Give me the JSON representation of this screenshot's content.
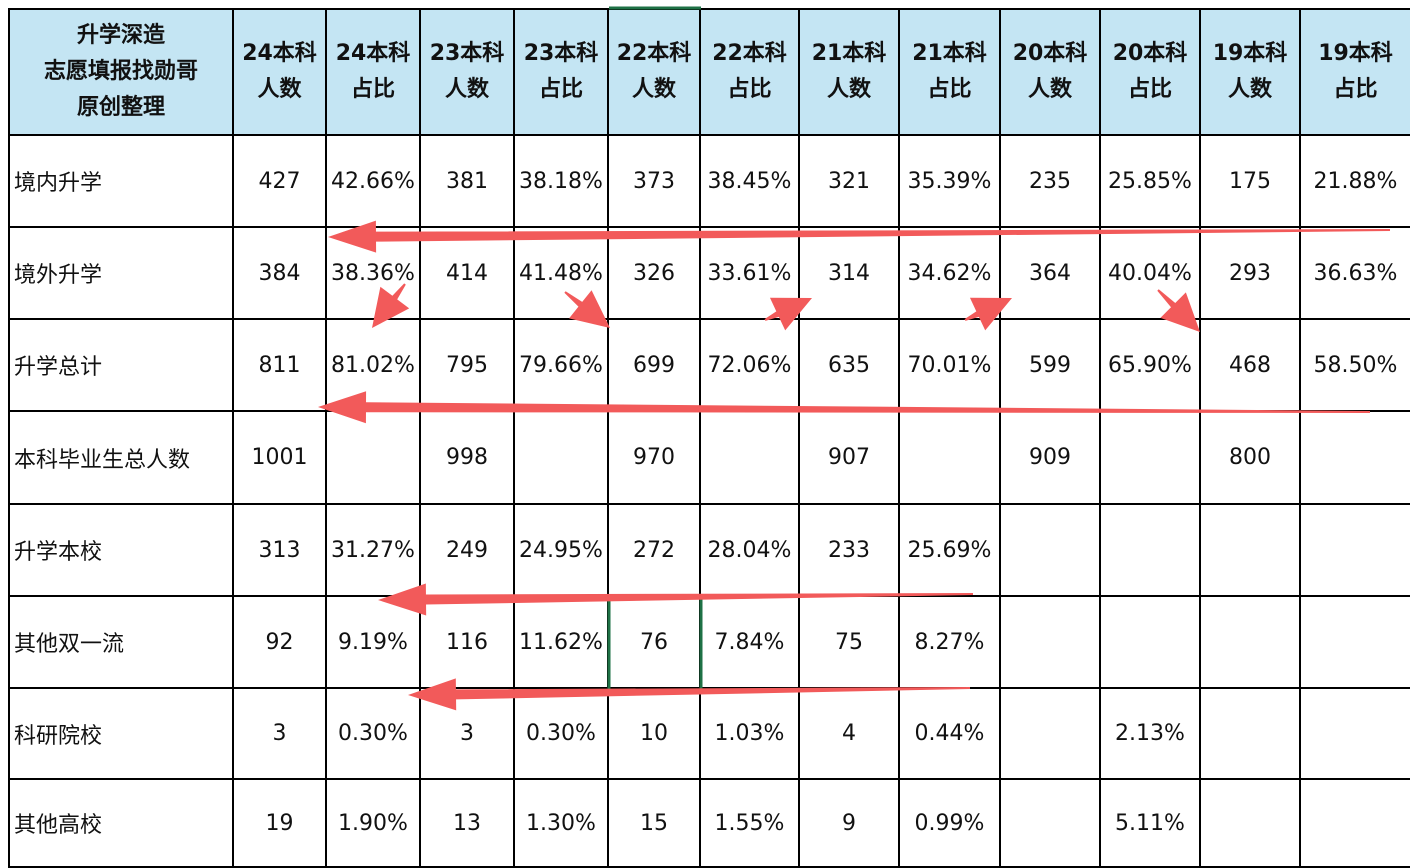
{
  "header": {
    "corner": [
      "升学深造",
      "志愿填报找勋哥",
      "原创整理"
    ],
    "columns": [
      [
        "24本科",
        "人数"
      ],
      [
        "24本科",
        "占比"
      ],
      [
        "23本科",
        "人数"
      ],
      [
        "23本科",
        "占比"
      ],
      [
        "22本科",
        "人数"
      ],
      [
        "22本科",
        "占比"
      ],
      [
        "21本科",
        "人数"
      ],
      [
        "21本科",
        "占比"
      ],
      [
        "20本科",
        "人数"
      ],
      [
        "20本科",
        "占比"
      ],
      [
        "19本科",
        "人数"
      ],
      [
        "19本科",
        "占比"
      ]
    ]
  },
  "table": {
    "rows": [
      [
        "境内升学",
        "427",
        "42.66%",
        "381",
        "38.18%",
        "373",
        "38.45%",
        "321",
        "35.39%",
        "235",
        "25.85%",
        "175",
        "21.88%"
      ],
      [
        "境外升学",
        "384",
        "38.36%",
        "414",
        "41.48%",
        "326",
        "33.61%",
        "314",
        "34.62%",
        "364",
        "40.04%",
        "293",
        "36.63%"
      ],
      [
        "升学总计",
        "811",
        "81.02%",
        "795",
        "79.66%",
        "699",
        "72.06%",
        "635",
        "70.01%",
        "599",
        "65.90%",
        "468",
        "58.50%"
      ],
      [
        "本科毕业生总人数",
        "1001",
        null,
        "998",
        null,
        "970",
        null,
        "907",
        null,
        "909",
        null,
        "800",
        null
      ],
      [
        "升学本校",
        "313",
        "31.27%",
        "249",
        "24.95%",
        "272",
        "28.04%",
        "233",
        "25.69%",
        null,
        null,
        null,
        null
      ],
      [
        "其他双一流",
        "92",
        "9.19%",
        "116",
        "11.62%",
        "76",
        "7.84%",
        "75",
        "8.27%",
        null,
        null,
        null,
        null
      ],
      [
        "科研院校",
        "3",
        "0.30%",
        "3",
        "0.30%",
        "10",
        "1.03%",
        "4",
        "0.44%",
        null,
        "2.13%",
        null,
        null
      ],
      [
        "其他高校",
        "19",
        "1.90%",
        "13",
        "1.30%",
        "15",
        "1.55%",
        "9",
        "0.99%",
        null,
        "5.11%",
        null,
        null
      ]
    ]
  }
}
